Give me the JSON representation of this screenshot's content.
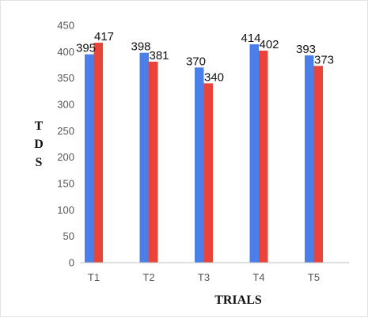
{
  "chart_data": {
    "type": "bar",
    "title": "",
    "categories": [
      "T1",
      "T2",
      "T3",
      "T4",
      "T5"
    ],
    "series": [
      {
        "values": [
          395,
          398,
          370,
          414,
          393
        ],
        "color": "#4a7fea"
      },
      {
        "values": [
          417,
          381,
          340,
          402,
          373
        ],
        "color": "#e9443a"
      }
    ],
    "xlabel": "TRIALS",
    "ylabel": "TDS",
    "ylim": [
      0,
      450
    ],
    "yticks": [
      0,
      50,
      100,
      150,
      200,
      250,
      300,
      350,
      400,
      450
    ],
    "grid": false,
    "legend": "none"
  }
}
